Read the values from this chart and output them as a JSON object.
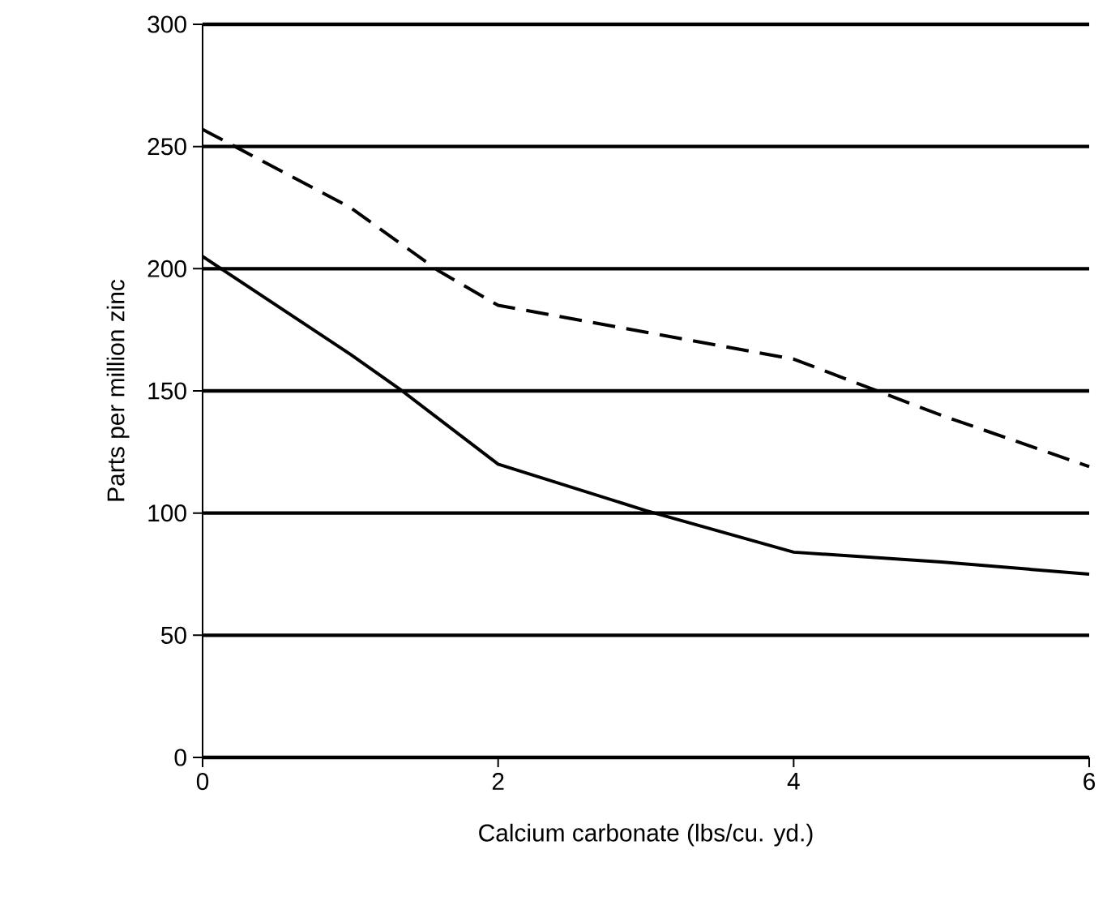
{
  "chart_data": {
    "type": "line",
    "xlabel": "Calcium carbonate (lbs/cu. yd.)",
    "ylabel": "Parts per million zinc",
    "xlim": [
      0,
      6
    ],
    "ylim": [
      0,
      300
    ],
    "xticks": [
      0,
      2,
      4,
      6
    ],
    "yticks": [
      0,
      50,
      100,
      150,
      200,
      250,
      300
    ],
    "grid": "y",
    "series": [
      {
        "color": "#000000",
        "line_style": "dashed",
        "x": [
          0,
          1,
          1.6,
          2,
          3,
          4,
          5,
          6
        ],
        "values": [
          257,
          225,
          199,
          185,
          174,
          163,
          140,
          119
        ]
      },
      {
        "color": "#000000",
        "line_style": "solid",
        "x": [
          0,
          1,
          1.35,
          2,
          3,
          4,
          5,
          6
        ],
        "values": [
          205,
          165,
          150,
          120,
          101,
          84,
          80,
          75
        ]
      }
    ]
  }
}
